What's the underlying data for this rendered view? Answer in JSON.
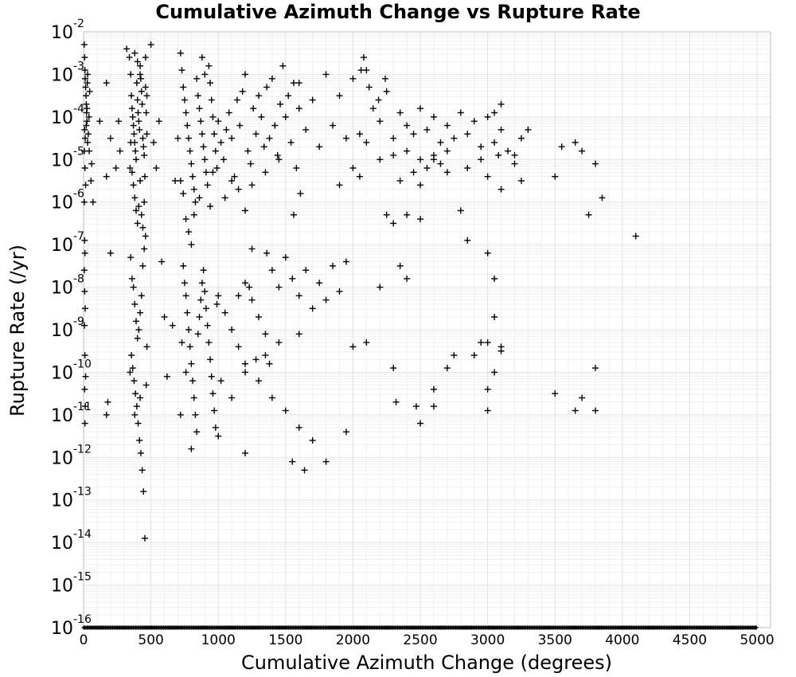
{
  "chart_data": {
    "type": "scatter",
    "title": "Cumulative Azimuth Change vs Rupture Rate",
    "xlabel": "Cumulative Azimuth Change (degrees)",
    "ylabel": "Rupture Rate (/yr)",
    "xlim": [
      0,
      5100
    ],
    "ylim_log10": [
      -16,
      -2
    ],
    "y_scale": "log",
    "grid": true,
    "marker": "plus",
    "marker_color": "#000000",
    "x_ticks": [
      {
        "value": 0,
        "label": "0"
      },
      {
        "value": 500,
        "label": "500"
      },
      {
        "value": 1000,
        "label": "1000"
      },
      {
        "value": 1500,
        "label": "1500"
      },
      {
        "value": 2000,
        "label": "2000"
      },
      {
        "value": 2500,
        "label": "2500"
      },
      {
        "value": 3000,
        "label": "3000"
      },
      {
        "value": 3500,
        "label": "3500"
      },
      {
        "value": 4000,
        "label": "4000"
      },
      {
        "value": 4500,
        "label": "4500"
      },
      {
        "value": 5000,
        "label": "5000"
      }
    ],
    "y_ticks": [
      {
        "value": -2,
        "base": "10",
        "exp": "-2"
      },
      {
        "value": -3,
        "base": "10",
        "exp": "-3"
      },
      {
        "value": -4,
        "base": "10",
        "exp": "-4"
      },
      {
        "value": -5,
        "base": "10",
        "exp": "-5"
      },
      {
        "value": -6,
        "base": "10",
        "exp": "-6"
      },
      {
        "value": -7,
        "base": "10",
        "exp": "-7"
      },
      {
        "value": -8,
        "base": "10",
        "exp": "-8"
      },
      {
        "value": -9,
        "base": "10",
        "exp": "-9"
      },
      {
        "value": -10,
        "base": "10",
        "exp": "-10"
      },
      {
        "value": -11,
        "base": "10",
        "exp": "-11"
      },
      {
        "value": -12,
        "base": "10",
        "exp": "-12"
      },
      {
        "value": -13,
        "base": "10",
        "exp": "-13"
      },
      {
        "value": -14,
        "base": "10",
        "exp": "-14"
      },
      {
        "value": -15,
        "base": "10",
        "exp": "-15"
      },
      {
        "value": -16,
        "base": "10",
        "exp": "-16"
      }
    ],
    "points_log10": [
      [
        5,
        -2.3
      ],
      [
        8,
        -2.6
      ],
      [
        10,
        -2.9
      ],
      [
        12,
        -3.1
      ],
      [
        15,
        -3.3
      ],
      [
        18,
        -3.5
      ],
      [
        20,
        -3.7
      ],
      [
        22,
        -3.9
      ],
      [
        25,
        -4.1
      ],
      [
        8,
        -4.3
      ],
      [
        12,
        -4.5
      ],
      [
        6,
        -4.8
      ],
      [
        30,
        -4.6
      ],
      [
        35,
        -4.4
      ],
      [
        40,
        -4.0
      ],
      [
        28,
        -3.2
      ],
      [
        45,
        -3.4
      ],
      [
        10,
        -5.2
      ],
      [
        15,
        -5.6
      ],
      [
        5,
        -6.0
      ],
      [
        55,
        -5.5
      ],
      [
        8,
        -6.9
      ],
      [
        10,
        -7.2
      ],
      [
        5,
        -7.6
      ],
      [
        8,
        -8.1
      ],
      [
        12,
        -8.5
      ],
      [
        6,
        -8.9
      ],
      [
        10,
        -9.6
      ],
      [
        15,
        -10.1
      ],
      [
        8,
        -10.4
      ],
      [
        12,
        -10.8
      ],
      [
        10,
        -11.2
      ],
      [
        20,
        -4.2
      ],
      [
        25,
        -3.8
      ],
      [
        30,
        -3.0
      ],
      [
        42,
        -4.8
      ],
      [
        120,
        -4.1
      ],
      [
        170,
        -3.2
      ],
      [
        200,
        -4.5
      ],
      [
        240,
        -5.2
      ],
      [
        270,
        -4.8
      ],
      [
        170,
        -5.4
      ],
      [
        60,
        -5.1
      ],
      [
        70,
        -6.0
      ],
      [
        200,
        -7.2
      ],
      [
        180,
        -10.7
      ],
      [
        170,
        -11.0
      ],
      [
        260,
        -4.1
      ],
      [
        320,
        -2.4
      ],
      [
        340,
        -2.6
      ],
      [
        350,
        -3.0
      ],
      [
        355,
        -3.5
      ],
      [
        360,
        -3.8
      ],
      [
        365,
        -4.0
      ],
      [
        370,
        -4.2
      ],
      [
        375,
        -4.4
      ],
      [
        380,
        -4.6
      ],
      [
        385,
        -4.8
      ],
      [
        390,
        -5.0
      ],
      [
        395,
        -3.2
      ],
      [
        400,
        -3.6
      ],
      [
        405,
        -3.9
      ],
      [
        410,
        -4.1
      ],
      [
        415,
        -4.3
      ],
      [
        420,
        -2.8
      ],
      [
        425,
        -3.1
      ],
      [
        430,
        -3.4
      ],
      [
        435,
        -3.7
      ],
      [
        440,
        -4.5
      ],
      [
        445,
        -4.7
      ],
      [
        450,
        -4.9
      ],
      [
        360,
        -5.3
      ],
      [
        370,
        -5.6
      ],
      [
        380,
        -5.9
      ],
      [
        390,
        -6.2
      ],
      [
        400,
        -6.5
      ],
      [
        410,
        -6.1
      ],
      [
        420,
        -5.5
      ],
      [
        430,
        -6.3
      ],
      [
        440,
        -6.6
      ],
      [
        450,
        -6.0
      ],
      [
        460,
        -3.3
      ],
      [
        465,
        -3.9
      ],
      [
        470,
        -4.4
      ],
      [
        350,
        -4.6
      ],
      [
        345,
        -5.2
      ],
      [
        455,
        -5.4
      ],
      [
        380,
        -2.5
      ],
      [
        400,
        -2.7
      ],
      [
        420,
        -3.0
      ],
      [
        460,
        -2.6
      ],
      [
        470,
        -3.5
      ],
      [
        350,
        -7.3
      ],
      [
        360,
        -7.8
      ],
      [
        370,
        -8.0
      ],
      [
        380,
        -8.4
      ],
      [
        390,
        -8.8
      ],
      [
        400,
        -9.2
      ],
      [
        410,
        -9.0
      ],
      [
        420,
        -8.6
      ],
      [
        430,
        -8.2
      ],
      [
        440,
        -7.5
      ],
      [
        450,
        -7.1
      ],
      [
        460,
        -6.8
      ],
      [
        355,
        -9.6
      ],
      [
        365,
        -9.9
      ],
      [
        375,
        -10.2
      ],
      [
        385,
        -10.5
      ],
      [
        395,
        -10.8
      ],
      [
        405,
        -11.2
      ],
      [
        415,
        -11.6
      ],
      [
        425,
        -11.9
      ],
      [
        435,
        -12.3
      ],
      [
        445,
        -12.8
      ],
      [
        455,
        -13.9
      ],
      [
        345,
        -10.0
      ],
      [
        465,
        -10.3
      ],
      [
        470,
        -9.4
      ],
      [
        380,
        -11.0
      ],
      [
        420,
        -10.6
      ],
      [
        500,
        -2.3
      ],
      [
        520,
        -4.6
      ],
      [
        540,
        -5.2
      ],
      [
        560,
        -4.1
      ],
      [
        580,
        -7.4
      ],
      [
        600,
        -8.7
      ],
      [
        620,
        -10.1
      ],
      [
        660,
        -8.9
      ],
      [
        680,
        -5.5
      ],
      [
        700,
        -4.5
      ],
      [
        720,
        -2.5
      ],
      [
        730,
        -2.9
      ],
      [
        740,
        -3.3
      ],
      [
        750,
        -3.6
      ],
      [
        760,
        -3.9
      ],
      [
        770,
        -4.2
      ],
      [
        780,
        -4.5
      ],
      [
        790,
        -4.8
      ],
      [
        800,
        -5.1
      ],
      [
        810,
        -5.4
      ],
      [
        820,
        -5.7
      ],
      [
        830,
        -6.0
      ],
      [
        840,
        -3.1
      ],
      [
        850,
        -3.5
      ],
      [
        860,
        -3.8
      ],
      [
        870,
        -4.1
      ],
      [
        880,
        -4.4
      ],
      [
        890,
        -4.7
      ],
      [
        900,
        -5.0
      ],
      [
        910,
        -5.3
      ],
      [
        920,
        -5.6
      ],
      [
        930,
        -2.8
      ],
      [
        940,
        -3.2
      ],
      [
        950,
        -3.6
      ],
      [
        960,
        -4.0
      ],
      [
        970,
        -4.4
      ],
      [
        980,
        -4.8
      ],
      [
        990,
        -5.2
      ],
      [
        760,
        -6.4
      ],
      [
        780,
        -6.7
      ],
      [
        800,
        -7.0
      ],
      [
        820,
        -6.3
      ],
      [
        740,
        -5.8
      ],
      [
        720,
        -5.5
      ],
      [
        900,
        -3.0
      ],
      [
        880,
        -2.6
      ],
      [
        860,
        -5.9
      ],
      [
        940,
        -6.1
      ],
      [
        960,
        -5.3
      ],
      [
        740,
        -7.5
      ],
      [
        750,
        -7.9
      ],
      [
        760,
        -8.2
      ],
      [
        770,
        -8.6
      ],
      [
        780,
        -9.0
      ],
      [
        790,
        -9.4
      ],
      [
        800,
        -9.8
      ],
      [
        810,
        -10.2
      ],
      [
        820,
        -10.6
      ],
      [
        830,
        -11.0
      ],
      [
        840,
        -11.4
      ],
      [
        850,
        -9.1
      ],
      [
        860,
        -8.7
      ],
      [
        870,
        -8.3
      ],
      [
        880,
        -7.9
      ],
      [
        890,
        -7.6
      ],
      [
        900,
        -8.1
      ],
      [
        910,
        -8.5
      ],
      [
        920,
        -8.9
      ],
      [
        930,
        -9.3
      ],
      [
        940,
        -9.7
      ],
      [
        950,
        -10.1
      ],
      [
        960,
        -10.5
      ],
      [
        970,
        -10.9
      ],
      [
        980,
        -11.3
      ],
      [
        990,
        -8.4
      ],
      [
        760,
        -10.0
      ],
      [
        800,
        -11.8
      ],
      [
        720,
        -11.0
      ],
      [
        730,
        -9.3
      ],
      [
        1000,
        -4.1
      ],
      [
        1020,
        -4.6
      ],
      [
        1040,
        -5.0
      ],
      [
        1060,
        -4.3
      ],
      [
        1080,
        -3.9
      ],
      [
        1100,
        -4.5
      ],
      [
        1120,
        -5.4
      ],
      [
        1140,
        -3.6
      ],
      [
        1160,
        -4.2
      ],
      [
        1180,
        -3.4
      ],
      [
        1200,
        -3.0
      ],
      [
        1220,
        -4.8
      ],
      [
        1240,
        -5.1
      ],
      [
        1260,
        -3.8
      ],
      [
        1280,
        -4.4
      ],
      [
        1300,
        -3.5
      ],
      [
        1320,
        -4.0
      ],
      [
        1340,
        -4.7
      ],
      [
        1360,
        -3.3
      ],
      [
        1380,
        -4.5
      ],
      [
        1400,
        -3.1
      ],
      [
        1420,
        -4.2
      ],
      [
        1440,
        -4.9
      ],
      [
        1460,
        -3.7
      ],
      [
        1480,
        -2.8
      ],
      [
        1500,
        -4.0
      ],
      [
        1520,
        -3.5
      ],
      [
        1540,
        -4.6
      ],
      [
        1560,
        -3.2
      ],
      [
        1580,
        -5.2
      ],
      [
        1600,
        -3.8
      ],
      [
        1150,
        -5.7
      ],
      [
        1250,
        -5.6
      ],
      [
        1350,
        -5.3
      ],
      [
        1450,
        -5.0
      ],
      [
        1610,
        -5.8
      ],
      [
        1560,
        -6.3
      ],
      [
        1050,
        -5.9
      ],
      [
        1100,
        -5.5
      ],
      [
        1200,
        -6.2
      ],
      [
        1000,
        -8.2
      ],
      [
        1050,
        -8.6
      ],
      [
        1100,
        -9.0
      ],
      [
        1150,
        -9.4
      ],
      [
        1200,
        -7.9
      ],
      [
        1250,
        -8.3
      ],
      [
        1300,
        -8.7
      ],
      [
        1350,
        -9.1
      ],
      [
        1400,
        -7.6
      ],
      [
        1450,
        -8.0
      ],
      [
        1500,
        -7.3
      ],
      [
        1550,
        -7.8
      ],
      [
        1600,
        -8.2
      ],
      [
        1650,
        -7.6
      ],
      [
        1700,
        -8.5
      ],
      [
        1750,
        -7.9
      ],
      [
        1800,
        -8.3
      ],
      [
        1850,
        -7.5
      ],
      [
        1900,
        -8.1
      ],
      [
        1950,
        -7.4
      ],
      [
        1020,
        -10.2
      ],
      [
        1100,
        -10.6
      ],
      [
        1200,
        -10.0
      ],
      [
        1300,
        -10.2
      ],
      [
        1400,
        -10.6
      ],
      [
        1500,
        -10.9
      ],
      [
        1600,
        -11.3
      ],
      [
        1700,
        -11.6
      ],
      [
        1000,
        -11.5
      ],
      [
        1200,
        -11.9
      ],
      [
        1350,
        -9.6
      ],
      [
        1450,
        -9.3
      ],
      [
        1550,
        -12.1
      ],
      [
        1640,
        -12.3
      ],
      [
        1800,
        -12.1
      ],
      [
        1950,
        -11.4
      ],
      [
        1280,
        -9.7
      ],
      [
        1380,
        -9.8
      ],
      [
        1250,
        -7.1
      ],
      [
        1360,
        -7.2
      ],
      [
        1150,
        -8.2
      ],
      [
        1230,
        -8.0
      ],
      [
        1600,
        -9.1
      ],
      [
        1200,
        -9.8
      ],
      [
        1600,
        -3.2
      ],
      [
        1650,
        -4.3
      ],
      [
        1700,
        -3.6
      ],
      [
        1750,
        -4.7
      ],
      [
        1800,
        -3.0
      ],
      [
        1850,
        -4.2
      ],
      [
        1900,
        -3.5
      ],
      [
        1950,
        -4.5
      ],
      [
        2000,
        -3.1
      ],
      [
        2050,
        -4.4
      ],
      [
        2100,
        -2.9
      ],
      [
        2150,
        -3.8
      ],
      [
        2200,
        -4.1
      ],
      [
        2250,
        -3.4
      ],
      [
        2300,
        -4.5
      ],
      [
        2350,
        -3.9
      ],
      [
        2400,
        -4.2
      ],
      [
        2450,
        -4.4
      ],
      [
        2500,
        -3.8
      ],
      [
        2550,
        -4.3
      ],
      [
        2600,
        -4.0
      ],
      [
        2650,
        -4.6
      ],
      [
        2700,
        -4.2
      ],
      [
        2750,
        -4.5
      ],
      [
        2800,
        -3.9
      ],
      [
        2850,
        -4.4
      ],
      [
        2900,
        -4.1
      ],
      [
        2950,
        -4.7
      ],
      [
        3000,
        -4.0
      ],
      [
        3050,
        -3.9
      ],
      [
        3100,
        -4.3
      ],
      [
        2060,
        -2.9
      ],
      [
        2080,
        -2.6
      ],
      [
        2120,
        -3.3
      ],
      [
        2240,
        -3.1
      ],
      [
        2190,
        -3.6
      ],
      [
        2000,
        -5.2
      ],
      [
        2100,
        -4.6
      ],
      [
        2200,
        -5.0
      ],
      [
        2300,
        -4.9
      ],
      [
        2350,
        -5.5
      ],
      [
        2400,
        -4.8
      ],
      [
        2450,
        -5.3
      ],
      [
        2500,
        -5.0
      ],
      [
        2550,
        -5.2
      ],
      [
        2600,
        -4.9
      ],
      [
        2650,
        -5.1
      ],
      [
        2700,
        -4.8
      ],
      [
        2850,
        -5.2
      ],
      [
        2950,
        -5.0
      ],
      [
        3000,
        -5.4
      ],
      [
        3050,
        -4.6
      ],
      [
        3080,
        -4.9
      ],
      [
        3100,
        -3.7
      ],
      [
        3150,
        -4.8
      ],
      [
        3200,
        -4.9
      ],
      [
        3250,
        -4.5
      ],
      [
        3300,
        -4.3
      ],
      [
        1900,
        -5.6
      ],
      [
        2050,
        -5.4
      ],
      [
        2250,
        -6.3
      ],
      [
        2300,
        -6.5
      ],
      [
        2400,
        -6.3
      ],
      [
        2500,
        -6.4
      ],
      [
        2800,
        -6.2
      ],
      [
        2850,
        -6.9
      ],
      [
        3000,
        -7.2
      ],
      [
        3050,
        -7.8
      ],
      [
        3100,
        -5.7
      ],
      [
        3250,
        -5.5
      ],
      [
        3500,
        -5.4
      ],
      [
        3550,
        -4.7
      ],
      [
        3650,
        -4.6
      ],
      [
        3700,
        -4.8
      ],
      [
        3750,
        -6.3
      ],
      [
        3800,
        -5.1
      ],
      [
        3850,
        -5.9
      ],
      [
        4100,
        -6.8
      ],
      [
        3200,
        -5.1
      ],
      [
        2500,
        -5.6
      ],
      [
        2600,
        -5.0
      ],
      [
        2700,
        -5.3
      ],
      [
        2000,
        -9.4
      ],
      [
        2100,
        -9.3
      ],
      [
        2200,
        -8.0
      ],
      [
        2300,
        -9.9
      ],
      [
        2350,
        -7.5
      ],
      [
        2400,
        -7.8
      ],
      [
        2500,
        -11.2
      ],
      [
        2600,
        -10.4
      ],
      [
        2700,
        -9.9
      ],
      [
        2750,
        -9.6
      ],
      [
        2900,
        -9.6
      ],
      [
        3000,
        -9.3
      ],
      [
        3000,
        -10.4
      ],
      [
        3050,
        -10.0
      ],
      [
        3100,
        -9.4
      ],
      [
        2320,
        -10.7
      ],
      [
        2470,
        -10.8
      ],
      [
        2600,
        -10.8
      ],
      [
        3000,
        -10.9
      ],
      [
        3500,
        -10.5
      ],
      [
        3650,
        -10.9
      ],
      [
        3700,
        -10.6
      ],
      [
        3800,
        -9.9
      ],
      [
        3800,
        -10.9
      ],
      [
        2950,
        -9.3
      ],
      [
        3050,
        -8.7
      ],
      [
        3100,
        -9.5
      ]
    ],
    "floor_strip": {
      "y_log10": -16,
      "x_range": [
        0,
        5000
      ],
      "note": "dense markers along the 10^-16 floor"
    }
  }
}
